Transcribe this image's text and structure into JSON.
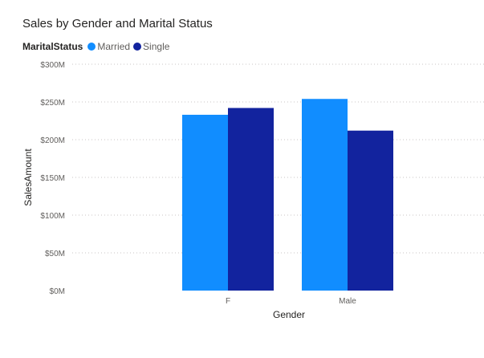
{
  "chart_data": {
    "type": "bar",
    "title": "Sales by Gender and Marital Status",
    "legend_title": "MaritalStatus",
    "legend_position": "top-left",
    "xlabel": "Gender",
    "ylabel": "SalesAmount",
    "categories": [
      "F",
      "Male"
    ],
    "series": [
      {
        "name": "Married",
        "color": "#118DFF",
        "values": [
          233,
          254
        ]
      },
      {
        "name": "Single",
        "color": "#12239E",
        "values": [
          242,
          212
        ]
      }
    ],
    "ylim": [
      0,
      300
    ],
    "yticks": [
      0,
      50,
      100,
      150,
      200,
      250,
      300
    ],
    "ytick_labels": [
      "$0M",
      "$50M",
      "$100M",
      "$150M",
      "$200M",
      "$250M",
      "$300M"
    ],
    "grid": true
  }
}
